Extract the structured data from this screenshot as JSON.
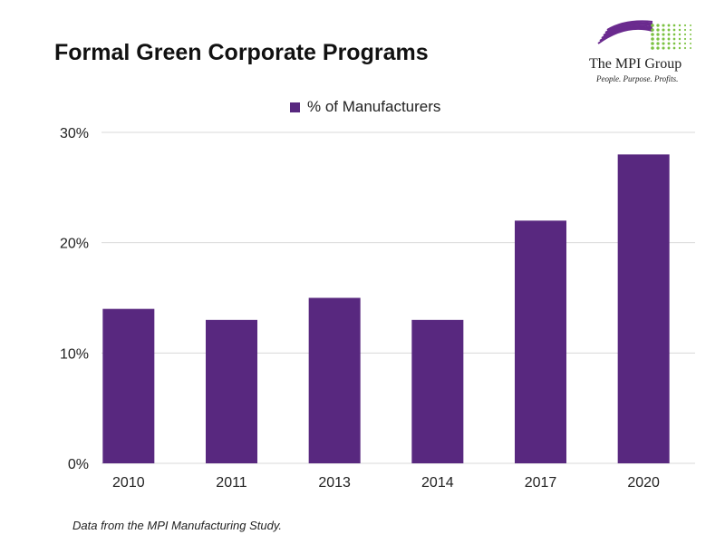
{
  "logo": {
    "name": "The MPI Group",
    "tagline": "People. Purpose. Profits."
  },
  "footnote": "Data from the MPI Manufacturing Study.",
  "colors": {
    "bar": "#58287f",
    "grid": "#d9d9d9",
    "logo_purple": "#6a2a8e",
    "logo_green": "#7cc242"
  },
  "chart_data": {
    "type": "bar",
    "title": "Formal Green Corporate Programs",
    "categories": [
      "2010",
      "2011",
      "2013",
      "2014",
      "2017",
      "2020"
    ],
    "series": [
      {
        "name": "% of Manufacturers",
        "values": [
          14,
          13,
          15,
          13,
          22,
          28
        ]
      }
    ],
    "ylim": [
      0,
      30
    ],
    "yticks": [
      0,
      10,
      20,
      30
    ],
    "ytick_labels": [
      "0%",
      "10%",
      "20%",
      "30%"
    ],
    "grid": true,
    "legend": "top-center"
  }
}
